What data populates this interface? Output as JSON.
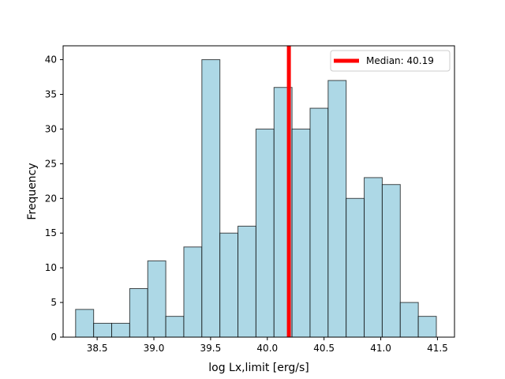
{
  "chart_data": {
    "type": "bar",
    "subtype": "histogram",
    "title": "",
    "xlabel": "log Lx,limit [erg/s]",
    "ylabel": "Frequency",
    "xlim": [
      38.2,
      41.65
    ],
    "ylim": [
      0,
      42
    ],
    "bin_width": 0.159,
    "bin_edges": [
      38.31,
      38.469,
      38.628,
      38.787,
      38.946,
      39.105,
      39.264,
      39.423,
      39.582,
      39.741,
      39.9,
      40.059,
      40.218,
      40.377,
      40.536,
      40.695,
      40.854,
      41.013,
      41.172,
      41.331,
      41.49
    ],
    "values": [
      4,
      2,
      2,
      7,
      11,
      3,
      13,
      40,
      15,
      16,
      30,
      36,
      30,
      33,
      37,
      20,
      23,
      22,
      5,
      3
    ],
    "xticks": [
      38.5,
      39.0,
      39.5,
      40.0,
      40.5,
      41.0,
      41.5
    ],
    "xtick_labels": [
      "38.5",
      "39.0",
      "39.5",
      "40.0",
      "40.5",
      "41.0",
      "41.5"
    ],
    "yticks": [
      0,
      5,
      10,
      15,
      20,
      25,
      30,
      35,
      40
    ],
    "ytick_labels": [
      "0",
      "5",
      "10",
      "15",
      "20",
      "25",
      "30",
      "35",
      "40"
    ],
    "median": 40.19,
    "legend": [
      {
        "label": "Median: 40.19",
        "color": "#ff0000"
      }
    ],
    "legend_position": "top-right",
    "colors": {
      "bar_fill": "#add8e6",
      "bar_edge": "#000000",
      "median_line": "#ff0000"
    }
  }
}
